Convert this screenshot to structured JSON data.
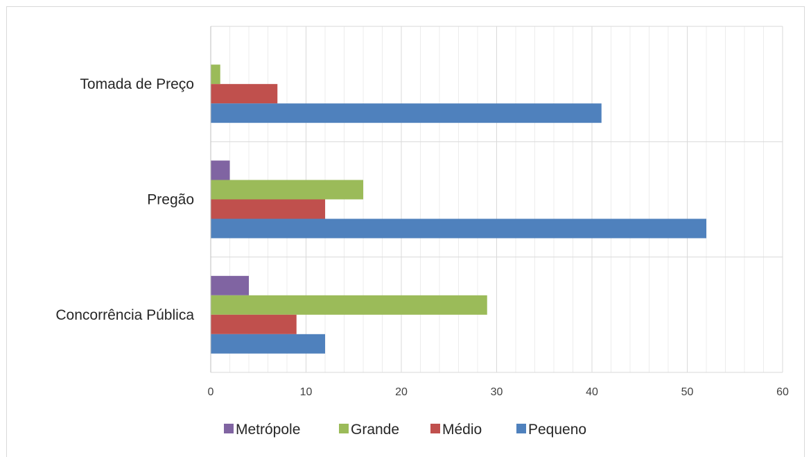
{
  "chart_data": {
    "type": "bar",
    "orientation": "horizontal",
    "categories": [
      "Tomada de Preço",
      "Pregão",
      "Concorrência Pública"
    ],
    "series": [
      {
        "name": "Pequeno",
        "color": "#4f81bd",
        "values": [
          41,
          52,
          12
        ]
      },
      {
        "name": "Médio",
        "color": "#c0504d",
        "values": [
          7,
          12,
          9
        ]
      },
      {
        "name": "Grande",
        "color": "#9bbb59",
        "values": [
          1,
          16,
          29
        ]
      },
      {
        "name": "Metrópole",
        "color": "#8064a2",
        "values": [
          0,
          2,
          4
        ]
      }
    ],
    "x_ticks": [
      "0",
      "10",
      "20",
      "30",
      "40",
      "50",
      "60"
    ],
    "xlim": [
      0,
      60
    ],
    "minor_grid_step": 2,
    "grid": true,
    "legend_position": "bottom",
    "legend_order": [
      "Metrópole",
      "Grande",
      "Médio",
      "Pequeno"
    ]
  }
}
